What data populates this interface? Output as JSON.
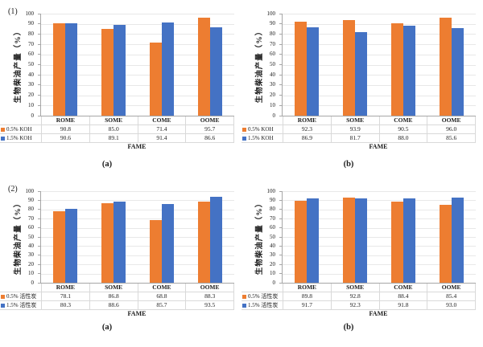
{
  "figure": {
    "background": "#ffffff"
  },
  "chart_data": [
    {
      "type": "bar",
      "row_tag": "(1)",
      "panel_label": "(a)",
      "ylabel": "生物柴油产量（%）",
      "xlabel": "FAME",
      "ylim": [
        0,
        100
      ],
      "ytick_step": 10,
      "grid": true,
      "legend_position": "left-table",
      "categories": [
        "ROME",
        "SOME",
        "COME",
        "OOME"
      ],
      "series": [
        {
          "name": "0.5% KOH",
          "color": "#ED7D31",
          "values": [
            90.8,
            85.0,
            71.4,
            95.7
          ]
        },
        {
          "name": "1.5% KOH",
          "color": "#4472C4",
          "values": [
            90.6,
            89.1,
            91.4,
            86.6
          ]
        }
      ]
    },
    {
      "type": "bar",
      "panel_label": "(b)",
      "ylabel": "生物柴油产量（%）",
      "xlabel": "FAME",
      "ylim": [
        0,
        100
      ],
      "ytick_step": 10,
      "grid": true,
      "legend_position": "left-table",
      "categories": [
        "ROME",
        "SOME",
        "COME",
        "OOME"
      ],
      "series": [
        {
          "name": "0.5% KOH",
          "color": "#ED7D31",
          "values": [
            92.3,
            93.9,
            90.5,
            96.0
          ]
        },
        {
          "name": "1.5% KOH",
          "color": "#4472C4",
          "values": [
            86.9,
            81.7,
            88.0,
            85.6
          ]
        }
      ]
    },
    {
      "type": "bar",
      "row_tag": "(2)",
      "panel_label": "(a)",
      "ylabel": "生物柴油产量（%）",
      "xlabel": "FAME",
      "ylim": [
        0,
        100
      ],
      "ytick_step": 10,
      "grid": true,
      "legend_position": "left-table",
      "categories": [
        "ROME",
        "SOME",
        "COME",
        "OOME"
      ],
      "series": [
        {
          "name": "0.5% 活性炭",
          "color": "#ED7D31",
          "values": [
            78.1,
            86.8,
            68.8,
            88.3
          ]
        },
        {
          "name": "1.5% 活性炭",
          "color": "#4472C4",
          "values": [
            80.3,
            88.6,
            85.7,
            93.5
          ]
        }
      ]
    },
    {
      "type": "bar",
      "panel_label": "(b)",
      "ylabel": "生物柴油产量（%）",
      "xlabel": "FAME",
      "ylim": [
        0,
        100
      ],
      "ytick_step": 10,
      "grid": true,
      "legend_position": "left-table",
      "categories": [
        "ROME",
        "SOME",
        "COME",
        "OOME"
      ],
      "series": [
        {
          "name": "0.5% 活性炭",
          "color": "#ED7D31",
          "values": [
            89.8,
            92.8,
            88.4,
            85.4
          ]
        },
        {
          "name": "1.5% 活性炭",
          "color": "#4472C4",
          "values": [
            91.7,
            92.3,
            91.8,
            93.0
          ]
        }
      ]
    }
  ]
}
